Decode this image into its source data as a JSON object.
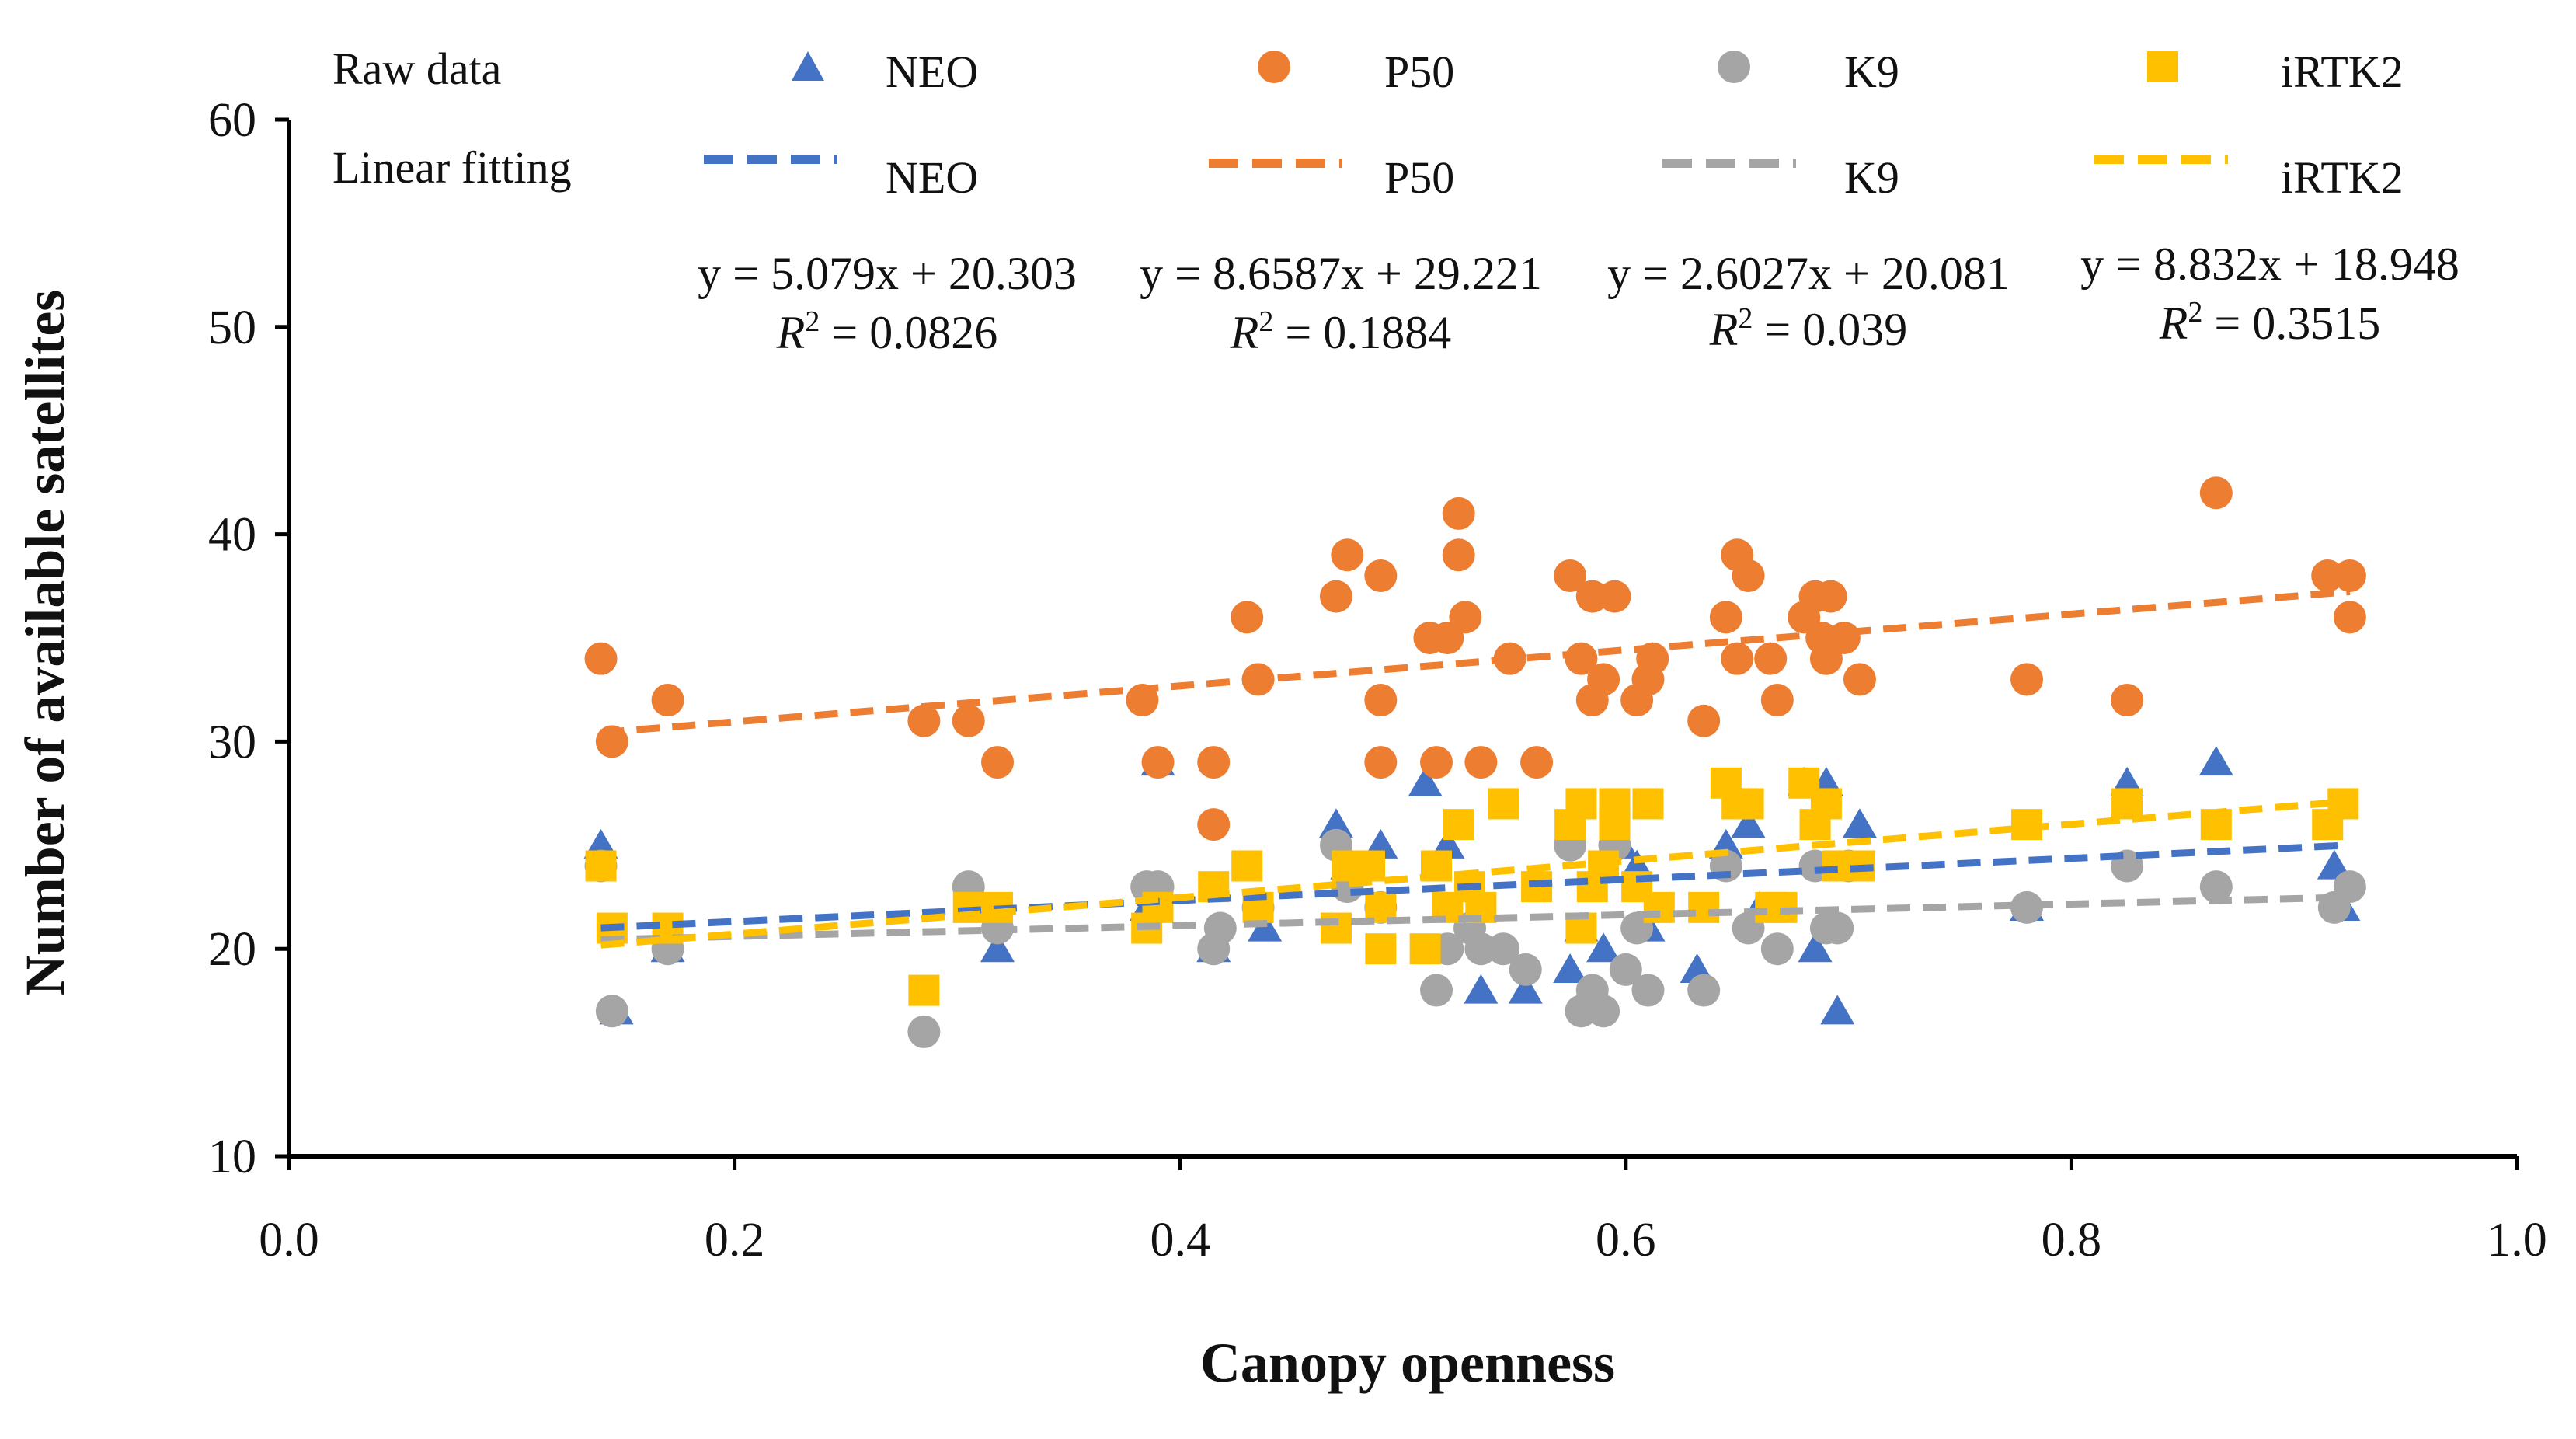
{
  "chart_data": {
    "type": "scatter",
    "xlabel": "Canopy openness",
    "ylabel": "Number of available satellites",
    "xlim": [
      0.0,
      1.0
    ],
    "ylim": [
      10,
      60
    ],
    "xticks": [
      "0.0",
      "0.2",
      "0.4",
      "0.6",
      "0.8",
      "1.0"
    ],
    "yticks": [
      "10",
      "20",
      "30",
      "40",
      "50",
      "60"
    ],
    "legend": {
      "raw_label": "Raw data",
      "fit_label": "Linear fitting"
    },
    "series": [
      {
        "name": "NEO",
        "marker": "triangle",
        "color": "#4472C4",
        "fit": {
          "slope": 5.079,
          "intercept": 20.303,
          "x_range": [
            0.14,
            0.925
          ]
        },
        "equation": "y = 5.079x + 20.303",
        "r2_label": "R",
        "r2_value": " = 0.0826",
        "points": [
          [
            0.14,
            25
          ],
          [
            0.147,
            17
          ],
          [
            0.17,
            20
          ],
          [
            0.318,
            20
          ],
          [
            0.385,
            22
          ],
          [
            0.39,
            29
          ],
          [
            0.415,
            20
          ],
          [
            0.438,
            21
          ],
          [
            0.47,
            26
          ],
          [
            0.475,
            24
          ],
          [
            0.49,
            25
          ],
          [
            0.51,
            28
          ],
          [
            0.52,
            25
          ],
          [
            0.53,
            23
          ],
          [
            0.535,
            18
          ],
          [
            0.555,
            18
          ],
          [
            0.575,
            19
          ],
          [
            0.58,
            21
          ],
          [
            0.59,
            20
          ],
          [
            0.598,
            25
          ],
          [
            0.605,
            24
          ],
          [
            0.61,
            21
          ],
          [
            0.632,
            19
          ],
          [
            0.645,
            25
          ],
          [
            0.655,
            26
          ],
          [
            0.66,
            22
          ],
          [
            0.68,
            28
          ],
          [
            0.685,
            20
          ],
          [
            0.69,
            28
          ],
          [
            0.695,
            17
          ],
          [
            0.705,
            26
          ],
          [
            0.78,
            22
          ],
          [
            0.825,
            28
          ],
          [
            0.865,
            29
          ],
          [
            0.918,
            24
          ],
          [
            0.922,
            22
          ]
        ]
      },
      {
        "name": "P50",
        "marker": "circle",
        "color": "#ED7D31",
        "fit": {
          "slope": 8.6587,
          "intercept": 29.221,
          "x_range": [
            0.14,
            0.925
          ]
        },
        "equation": "y = 8.6587x + 29.221",
        "r2_label": "R",
        "r2_value": " = 0.1884",
        "points": [
          [
            0.14,
            34
          ],
          [
            0.145,
            30
          ],
          [
            0.17,
            32
          ],
          [
            0.285,
            31
          ],
          [
            0.305,
            31
          ],
          [
            0.318,
            29
          ],
          [
            0.383,
            32
          ],
          [
            0.39,
            29
          ],
          [
            0.415,
            29
          ],
          [
            0.415,
            26
          ],
          [
            0.43,
            36
          ],
          [
            0.435,
            33
          ],
          [
            0.47,
            37
          ],
          [
            0.475,
            39
          ],
          [
            0.49,
            29
          ],
          [
            0.49,
            32
          ],
          [
            0.49,
            38
          ],
          [
            0.512,
            35
          ],
          [
            0.515,
            29
          ],
          [
            0.52,
            35
          ],
          [
            0.525,
            41
          ],
          [
            0.525,
            39
          ],
          [
            0.528,
            36
          ],
          [
            0.535,
            29
          ],
          [
            0.548,
            34
          ],
          [
            0.56,
            29
          ],
          [
            0.575,
            38
          ],
          [
            0.58,
            34
          ],
          [
            0.585,
            37
          ],
          [
            0.585,
            32
          ],
          [
            0.59,
            33
          ],
          [
            0.595,
            37
          ],
          [
            0.605,
            32
          ],
          [
            0.61,
            33
          ],
          [
            0.612,
            34
          ],
          [
            0.635,
            31
          ],
          [
            0.645,
            36
          ],
          [
            0.65,
            34
          ],
          [
            0.65,
            39
          ],
          [
            0.655,
            38
          ],
          [
            0.665,
            34
          ],
          [
            0.668,
            32
          ],
          [
            0.68,
            36
          ],
          [
            0.685,
            37
          ],
          [
            0.688,
            35
          ],
          [
            0.69,
            34
          ],
          [
            0.692,
            37
          ],
          [
            0.698,
            35
          ],
          [
            0.705,
            33
          ],
          [
            0.78,
            33
          ],
          [
            0.825,
            32
          ],
          [
            0.865,
            42
          ],
          [
            0.915,
            38
          ],
          [
            0.925,
            38
          ],
          [
            0.925,
            36
          ]
        ]
      },
      {
        "name": "K9",
        "marker": "circle",
        "color": "#A5A5A5",
        "fit": {
          "slope": 2.6027,
          "intercept": 20.081,
          "x_range": [
            0.14,
            0.925
          ]
        },
        "equation": "y = 2.6027x + 20.081",
        "r2_label": "R",
        "r2_value": " = 0.039",
        "points": [
          [
            0.14,
            24
          ],
          [
            0.145,
            17
          ],
          [
            0.17,
            20
          ],
          [
            0.285,
            16
          ],
          [
            0.305,
            23
          ],
          [
            0.318,
            21
          ],
          [
            0.385,
            23
          ],
          [
            0.39,
            23
          ],
          [
            0.415,
            20
          ],
          [
            0.418,
            21
          ],
          [
            0.435,
            22
          ],
          [
            0.47,
            25
          ],
          [
            0.475,
            23
          ],
          [
            0.49,
            22
          ],
          [
            0.515,
            18
          ],
          [
            0.52,
            20
          ],
          [
            0.53,
            21
          ],
          [
            0.535,
            20
          ],
          [
            0.545,
            20
          ],
          [
            0.555,
            19
          ],
          [
            0.575,
            25
          ],
          [
            0.58,
            17
          ],
          [
            0.585,
            18
          ],
          [
            0.59,
            17
          ],
          [
            0.595,
            25
          ],
          [
            0.6,
            19
          ],
          [
            0.605,
            21
          ],
          [
            0.61,
            18
          ],
          [
            0.635,
            18
          ],
          [
            0.645,
            24
          ],
          [
            0.655,
            21
          ],
          [
            0.668,
            20
          ],
          [
            0.685,
            24
          ],
          [
            0.69,
            21
          ],
          [
            0.695,
            21
          ],
          [
            0.7,
            24
          ],
          [
            0.78,
            22
          ],
          [
            0.825,
            24
          ],
          [
            0.865,
            23
          ],
          [
            0.918,
            22
          ],
          [
            0.925,
            23
          ]
        ]
      },
      {
        "name": "iRTK2",
        "marker": "square",
        "color": "#FFC000",
        "fit": {
          "slope": 8.832,
          "intercept": 18.948,
          "x_range": [
            0.14,
            0.925
          ]
        },
        "equation": "y = 8.832x + 18.948",
        "r2_label": "R",
        "r2_value": " = 0.3515",
        "points": [
          [
            0.14,
            24
          ],
          [
            0.145,
            21
          ],
          [
            0.17,
            21
          ],
          [
            0.285,
            18
          ],
          [
            0.305,
            22
          ],
          [
            0.318,
            22
          ],
          [
            0.385,
            21
          ],
          [
            0.39,
            22
          ],
          [
            0.415,
            23
          ],
          [
            0.43,
            24
          ],
          [
            0.435,
            22
          ],
          [
            0.47,
            21
          ],
          [
            0.475,
            24
          ],
          [
            0.485,
            24
          ],
          [
            0.49,
            20
          ],
          [
            0.49,
            22
          ],
          [
            0.51,
            20
          ],
          [
            0.515,
            24
          ],
          [
            0.52,
            22
          ],
          [
            0.525,
            26
          ],
          [
            0.53,
            23
          ],
          [
            0.535,
            22
          ],
          [
            0.545,
            27
          ],
          [
            0.56,
            23
          ],
          [
            0.575,
            26
          ],
          [
            0.58,
            27
          ],
          [
            0.58,
            21
          ],
          [
            0.585,
            23
          ],
          [
            0.59,
            24
          ],
          [
            0.595,
            27
          ],
          [
            0.595,
            26
          ],
          [
            0.605,
            23
          ],
          [
            0.61,
            27
          ],
          [
            0.615,
            22
          ],
          [
            0.635,
            22
          ],
          [
            0.645,
            28
          ],
          [
            0.65,
            27
          ],
          [
            0.655,
            27
          ],
          [
            0.665,
            22
          ],
          [
            0.67,
            22
          ],
          [
            0.68,
            28
          ],
          [
            0.685,
            26
          ],
          [
            0.69,
            27
          ],
          [
            0.695,
            24
          ],
          [
            0.705,
            24
          ],
          [
            0.78,
            26
          ],
          [
            0.825,
            27
          ],
          [
            0.865,
            26
          ],
          [
            0.915,
            26
          ],
          [
            0.922,
            27
          ]
        ]
      }
    ]
  }
}
